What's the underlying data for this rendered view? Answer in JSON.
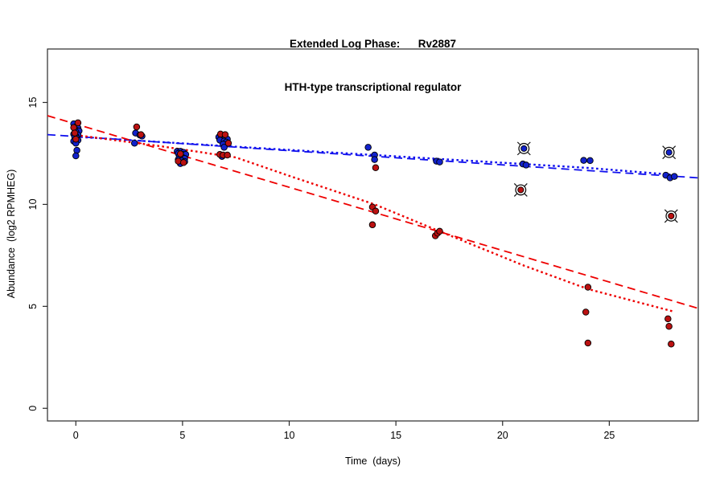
{
  "figure": {
    "title_line1": "Extended Log Phase:      Rv2887",
    "title_line2": "HTH-type transcriptional regulator",
    "background": "#ffffff",
    "frame_color": "#2a2a2a"
  },
  "chart_data": {
    "type": "scatter",
    "title": "Extended Log Phase: Rv2887 — HTH-type transcriptional regulator",
    "xlabel": "Time  (days)",
    "ylabel": "Abundance  (log2 RPMHEG)",
    "xlim": [
      -1.33,
      29.17
    ],
    "ylim": [
      -0.62,
      17.62
    ],
    "x_ticks": [
      0,
      5,
      10,
      15,
      20,
      25
    ],
    "y_ticks": [
      0,
      5,
      10,
      15
    ],
    "grid": false,
    "legend": "none",
    "colors": {
      "blue_point": "#1222CC",
      "red_point": "#BB1111",
      "blue_line": "#1010EE",
      "red_line": "#EE0000",
      "flag_ring": "#111111"
    },
    "series": [
      {
        "name": "blue-condition-points",
        "color": "#1222CC",
        "marker": "filled-circle",
        "points": [
          [
            -0.1,
            13.95
          ],
          [
            0.05,
            13.85
          ],
          [
            0.1,
            13.75
          ],
          [
            -0.05,
            13.7
          ],
          [
            0.15,
            13.6
          ],
          [
            0.0,
            13.55
          ],
          [
            -0.1,
            13.45
          ],
          [
            0.1,
            13.4
          ],
          [
            0.0,
            13.35
          ],
          [
            -0.05,
            13.3
          ],
          [
            0.05,
            13.25
          ],
          [
            0.1,
            13.15
          ],
          [
            -0.1,
            13.1
          ],
          [
            0.0,
            13.0
          ],
          [
            0.05,
            12.65
          ],
          [
            0.0,
            12.38
          ],
          [
            2.8,
            13.5
          ],
          [
            3.0,
            13.4
          ],
          [
            3.1,
            13.35
          ],
          [
            2.75,
            13.0
          ],
          [
            4.75,
            12.6
          ],
          [
            4.9,
            12.6
          ],
          [
            5.05,
            12.55
          ],
          [
            4.8,
            12.5
          ],
          [
            5.0,
            12.45
          ],
          [
            5.15,
            12.45
          ],
          [
            4.85,
            12.35
          ],
          [
            5.0,
            12.3
          ],
          [
            5.1,
            12.25
          ],
          [
            4.8,
            12.2
          ],
          [
            4.95,
            12.15
          ],
          [
            5.1,
            12.1
          ],
          [
            4.9,
            12.0
          ],
          [
            6.7,
            13.3
          ],
          [
            6.85,
            13.3
          ],
          [
            7.0,
            13.25
          ],
          [
            7.1,
            13.2
          ],
          [
            6.75,
            13.15
          ],
          [
            6.95,
            13.1
          ],
          [
            7.05,
            13.05
          ],
          [
            6.9,
            12.95
          ],
          [
            6.95,
            12.8
          ],
          [
            6.85,
            12.35
          ],
          [
            13.7,
            12.8
          ],
          [
            14.0,
            12.42
          ],
          [
            14.0,
            12.2
          ],
          [
            16.9,
            12.12
          ],
          [
            17.05,
            12.08
          ],
          [
            20.95,
            11.98
          ],
          [
            21.1,
            11.93
          ],
          [
            23.8,
            12.16
          ],
          [
            24.1,
            12.15
          ],
          [
            27.65,
            11.43
          ],
          [
            27.85,
            11.3
          ],
          [
            28.05,
            11.37
          ]
        ]
      },
      {
        "name": "blue-condition-flagged-points",
        "color": "#1222CC",
        "marker": "circled-cross",
        "points": [
          [
            21.0,
            12.74
          ],
          [
            27.8,
            12.55
          ]
        ]
      },
      {
        "name": "red-condition-points",
        "color": "#BB1111",
        "marker": "filled-circle",
        "points": [
          [
            0.1,
            14.0
          ],
          [
            -0.1,
            13.77
          ],
          [
            -0.05,
            13.5
          ],
          [
            0.0,
            13.2
          ],
          [
            2.85,
            13.8
          ],
          [
            3.05,
            13.42
          ],
          [
            4.9,
            12.48
          ],
          [
            4.8,
            12.12
          ],
          [
            5.05,
            12.05
          ],
          [
            6.78,
            13.45
          ],
          [
            7.0,
            13.42
          ],
          [
            7.15,
            13.0
          ],
          [
            6.75,
            12.45
          ],
          [
            6.9,
            12.42
          ],
          [
            7.1,
            12.42
          ],
          [
            14.05,
            11.8
          ],
          [
            13.9,
            9.87
          ],
          [
            14.05,
            9.67
          ],
          [
            13.9,
            9.0
          ],
          [
            16.85,
            8.46
          ],
          [
            16.95,
            8.59
          ],
          [
            17.05,
            8.68
          ],
          [
            24.0,
            5.94
          ],
          [
            23.9,
            4.72
          ],
          [
            24.0,
            3.2
          ],
          [
            27.75,
            4.39
          ],
          [
            27.8,
            4.02
          ],
          [
            27.9,
            3.15
          ]
        ]
      },
      {
        "name": "red-condition-flagged-points",
        "color": "#BB1111",
        "marker": "circled-cross",
        "points": [
          [
            20.85,
            10.71
          ],
          [
            27.9,
            9.43
          ]
        ]
      }
    ],
    "lines": [
      {
        "name": "blue-longdash-fit",
        "color": "#1010EE",
        "dash": "longdash",
        "width": 1.8,
        "points": [
          [
            -1.33,
            13.42
          ],
          [
            29.17,
            11.3
          ]
        ]
      },
      {
        "name": "blue-dotted-fit",
        "color": "#1010EE",
        "dash": "dotted",
        "width": 2.4,
        "points": [
          [
            0,
            13.32
          ],
          [
            3,
            13.12
          ],
          [
            7,
            12.86
          ],
          [
            10,
            12.67
          ],
          [
            14,
            12.42
          ],
          [
            17,
            12.23
          ],
          [
            21,
            11.98
          ],
          [
            24,
            11.79
          ],
          [
            28,
            11.45
          ]
        ]
      },
      {
        "name": "red-longdash-fit",
        "color": "#EE0000",
        "dash": "longdash",
        "width": 1.8,
        "points": [
          [
            -1.33,
            14.35
          ],
          [
            29.17,
            4.9
          ]
        ]
      },
      {
        "name": "red-dotted-fit",
        "color": "#EE0000",
        "dash": "dotted",
        "width": 2.4,
        "points": [
          [
            0,
            13.4
          ],
          [
            4,
            12.85
          ],
          [
            7.5,
            12.3
          ],
          [
            10,
            11.4
          ],
          [
            14,
            10.0
          ],
          [
            17,
            8.7
          ],
          [
            21,
            7.0
          ],
          [
            24,
            5.85
          ],
          [
            28,
            4.75
          ]
        ]
      }
    ]
  }
}
